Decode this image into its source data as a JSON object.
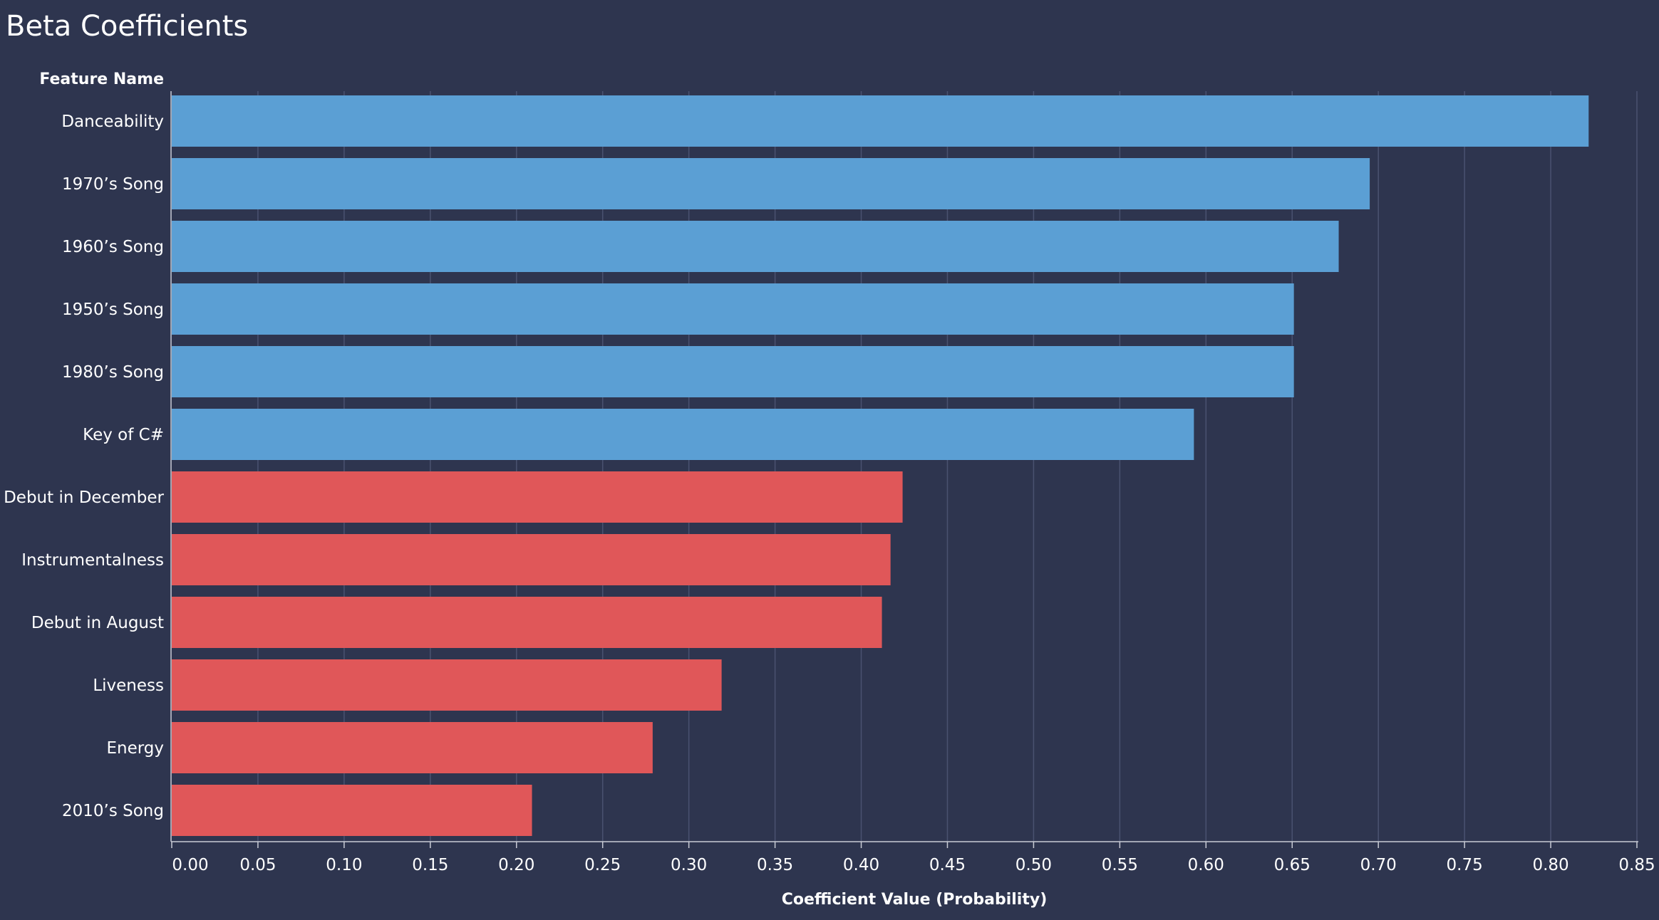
{
  "title": "Beta Coefficients",
  "chart_data": {
    "type": "bar",
    "orientation": "horizontal",
    "title": "Beta Coefficients",
    "ylabel": "Feature Name",
    "xlabel": "Coefficient Value (Probability)",
    "xlim": [
      0,
      0.85
    ],
    "x_ticks": [
      0.0,
      0.05,
      0.1,
      0.15,
      0.2,
      0.25,
      0.3,
      0.35,
      0.4,
      0.45,
      0.5,
      0.55,
      0.6,
      0.65,
      0.7,
      0.75,
      0.8,
      0.85
    ],
    "x_tick_labels": [
      "0.00",
      "0.05",
      "0.10",
      "0.15",
      "0.20",
      "0.25",
      "0.30",
      "0.35",
      "0.40",
      "0.45",
      "0.50",
      "0.55",
      "0.60",
      "0.65",
      "0.70",
      "0.75",
      "0.80",
      "0.85"
    ],
    "grid": "vertical",
    "categories": [
      "Danceability",
      "1970’s Song",
      "1960’s Song",
      "1950’s Song",
      "1980’s Song",
      "Key of C#",
      "Debut in December",
      "Instrumentalness",
      "Debut in August",
      "Liveness",
      "Energy",
      "2010’s Song"
    ],
    "values": [
      0.822,
      0.695,
      0.677,
      0.651,
      0.651,
      0.593,
      0.424,
      0.417,
      0.412,
      0.319,
      0.279,
      0.209
    ],
    "bar_colors": [
      "#5b9fd4",
      "#5b9fd4",
      "#5b9fd4",
      "#5b9fd4",
      "#5b9fd4",
      "#5b9fd4",
      "#e05759",
      "#e05759",
      "#e05759",
      "#e05759",
      "#e05759",
      "#e05759"
    ],
    "colors": {
      "background": "#2e354f",
      "gridline": "#4a5270",
      "axis_line": "#c9ccd6",
      "text": "#ffffff"
    }
  }
}
